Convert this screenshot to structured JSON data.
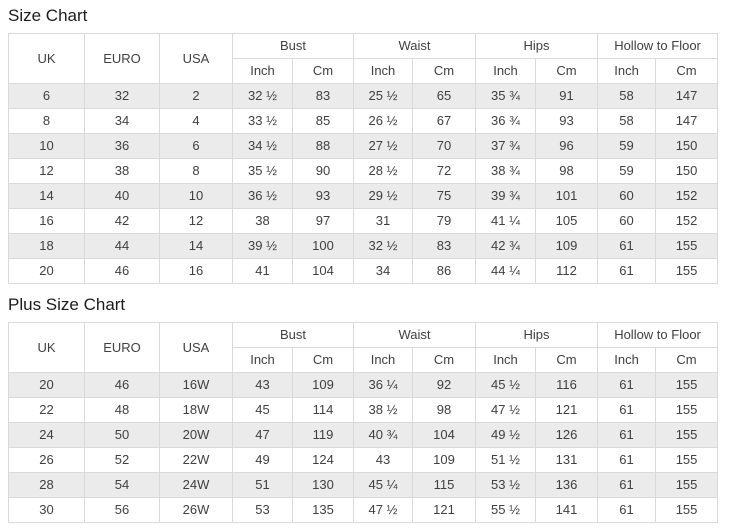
{
  "colors": {
    "stripe": "#ebebeb",
    "border": "#d9d9d9",
    "cell_text": "#404040",
    "title_text": "#1c1c1c",
    "background": "#ffffff"
  },
  "size_chart": {
    "title": "Size Chart",
    "headers": {
      "uk": "UK",
      "euro": "EURO",
      "usa": "USA",
      "bust": "Bust",
      "waist": "Waist",
      "hips": "Hips",
      "hollow_to_floor": "Hollow to Floor",
      "inch": "Inch",
      "cm": "Cm"
    },
    "rows": [
      [
        "6",
        "32",
        "2",
        "32 ½",
        "83",
        "25 ½",
        "65",
        "35 ¾",
        "91",
        "58",
        "147"
      ],
      [
        "8",
        "34",
        "4",
        "33 ½",
        "85",
        "26 ½",
        "67",
        "36 ¾",
        "93",
        "58",
        "147"
      ],
      [
        "10",
        "36",
        "6",
        "34 ½",
        "88",
        "27 ½",
        "70",
        "37 ¾",
        "96",
        "59",
        "150"
      ],
      [
        "12",
        "38",
        "8",
        "35 ½",
        "90",
        "28 ½",
        "72",
        "38 ¾",
        "98",
        "59",
        "150"
      ],
      [
        "14",
        "40",
        "10",
        "36 ½",
        "93",
        "29 ½",
        "75",
        "39 ¾",
        "101",
        "60",
        "152"
      ],
      [
        "16",
        "42",
        "12",
        "38",
        "97",
        "31",
        "79",
        "41 ¼",
        "105",
        "60",
        "152"
      ],
      [
        "18",
        "44",
        "14",
        "39 ½",
        "100",
        "32 ½",
        "83",
        "42 ¾",
        "109",
        "61",
        "155"
      ],
      [
        "20",
        "46",
        "16",
        "41",
        "104",
        "34",
        "86",
        "44 ¼",
        "112",
        "61",
        "155"
      ]
    ]
  },
  "plus_size_chart": {
    "title": "Plus Size Chart",
    "headers": {
      "uk": "UK",
      "euro": "EURO",
      "usa": "USA",
      "bust": "Bust",
      "waist": "Waist",
      "hips": "Hips",
      "hollow_to_floor": "Hollow to Floor",
      "inch": "Inch",
      "cm": "Cm"
    },
    "rows": [
      [
        "20",
        "46",
        "16W",
        "43",
        "109",
        "36 ¼",
        "92",
        "45 ½",
        "116",
        "61",
        "155"
      ],
      [
        "22",
        "48",
        "18W",
        "45",
        "114",
        "38 ½",
        "98",
        "47 ½",
        "121",
        "61",
        "155"
      ],
      [
        "24",
        "50",
        "20W",
        "47",
        "119",
        "40 ¾",
        "104",
        "49 ½",
        "126",
        "61",
        "155"
      ],
      [
        "26",
        "52",
        "22W",
        "49",
        "124",
        "43",
        "109",
        "51 ½",
        "131",
        "61",
        "155"
      ],
      [
        "28",
        "54",
        "24W",
        "51",
        "130",
        "45 ¼",
        "115",
        "53 ½",
        "136",
        "61",
        "155"
      ],
      [
        "30",
        "56",
        "26W",
        "53",
        "135",
        "47 ½",
        "121",
        "55 ½",
        "141",
        "61",
        "155"
      ]
    ]
  }
}
